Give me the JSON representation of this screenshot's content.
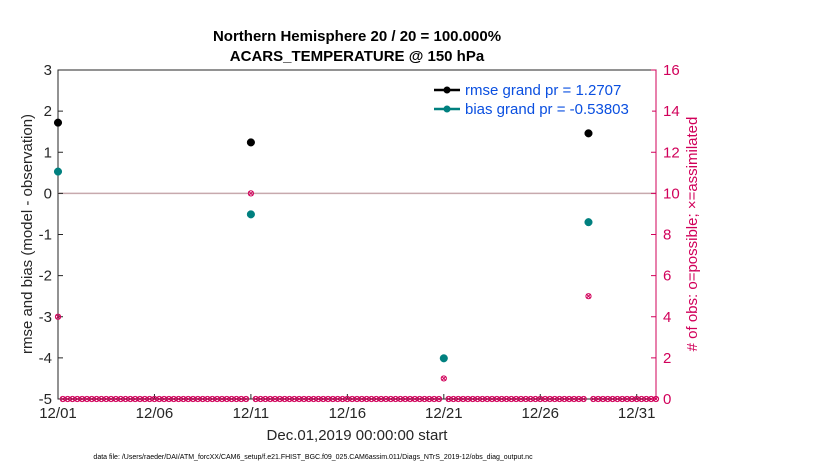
{
  "chart_data": {
    "type": "scatter",
    "title": "Northern Hemisphere 20 / 20 = 100.000%",
    "subtitle": "ACARS_TEMPERATURE @ 150 hPa",
    "xlabel": "Dec.01,2019 00:00:00 start",
    "ylabel": "rmse and bias (model - observation)",
    "y2label": "# of obs: o=possible; ×=assimilated",
    "xlim": [
      0,
      31
    ],
    "ylim": [
      -5,
      3
    ],
    "y2lim": [
      0,
      16
    ],
    "x_ticks": [
      {
        "value": 0,
        "label": "12/01"
      },
      {
        "value": 5,
        "label": "12/06"
      },
      {
        "value": 10,
        "label": "12/11"
      },
      {
        "value": 15,
        "label": "12/16"
      },
      {
        "value": 20,
        "label": "12/21"
      },
      {
        "value": 25,
        "label": "12/26"
      },
      {
        "value": 30,
        "label": "12/31"
      }
    ],
    "y_ticks": [
      "3",
      "2",
      "1",
      "0",
      "-1",
      "-2",
      "-3",
      "-4",
      "-5"
    ],
    "y2_ticks": [
      "16",
      "14",
      "12",
      "10",
      "8",
      "6",
      "4",
      "2",
      "0"
    ],
    "reference_line_y": 0,
    "series": [
      {
        "name": "rmse grand pr = 1.2707",
        "color": "#000000",
        "points": [
          [
            0,
            1.72
          ],
          [
            10,
            1.24
          ],
          [
            27.5,
            1.46
          ]
        ]
      },
      {
        "name": "bias grand pr = -0.53803",
        "color": "#00807f",
        "points": [
          [
            0,
            0.53
          ],
          [
            10,
            -0.51
          ],
          [
            20,
            -4.01
          ],
          [
            27.5,
            -0.7
          ]
        ]
      }
    ],
    "obs_counts": {
      "color": "#d1005a",
      "axis": "right",
      "nonzero_points": [
        [
          0,
          4
        ],
        [
          10,
          10
        ],
        [
          20,
          1
        ],
        [
          27.5,
          5
        ]
      ],
      "zero_step": 0.25
    },
    "footer": "data file: /Users/raeder/DAI/ATM_forcXX/CAM6_setup/f.e21.FHIST_BGC.f09_025.CAM6assim.011/Diags_NTrS_2019-12/obs_diag_output.nc"
  }
}
